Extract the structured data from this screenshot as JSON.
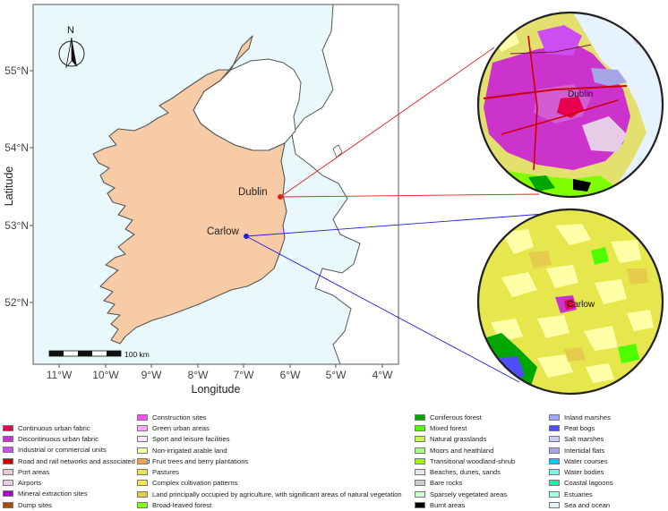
{
  "map": {
    "lat_ticks": [
      "55°N",
      "54°N",
      "53°N",
      "52°N"
    ],
    "lon_ticks": [
      "11°W",
      "10°W",
      "9°W",
      "8°W",
      "7°W",
      "6°W",
      "5°W",
      "4°W"
    ],
    "xlabel": "Longitude",
    "ylabel": "Latitude",
    "north_label": "N",
    "scalebar_label": "100 km",
    "land_color": "#f7cba6",
    "uk_land_color": "#ffffff",
    "sea_color": "#e9f9fb",
    "locations": [
      {
        "name": "Dublin",
        "lat": 53.35,
        "lon": -6.26,
        "line_color": "#e02020"
      },
      {
        "name": "Carlow",
        "lat": 52.84,
        "lon": -6.93,
        "line_color": "#2020e0"
      }
    ],
    "insets": [
      {
        "label": "Dublin",
        "dominant_class": "Discontinuous urban fabric"
      },
      {
        "label": "Carlow",
        "dominant_class": "Pastures"
      }
    ]
  },
  "legend": {
    "columns": [
      [
        {
          "label": "Continuous urban fabric",
          "color": "#e6004d"
        },
        {
          "label": "Discontinuous urban fabric",
          "color": "#cc33cc"
        },
        {
          "label": "Industrial or commercial units",
          "color": "#cc4df2"
        },
        {
          "label": "Road and rail networks and associated land",
          "color": "#cc0000"
        },
        {
          "label": "Port areas",
          "color": "#e6cccc"
        },
        {
          "label": "Airports",
          "color": "#e6cce6"
        },
        {
          "label": "Mineral extraction sites",
          "color": "#a600cc"
        },
        {
          "label": "Dump sites",
          "color": "#a64d00"
        }
      ],
      [
        {
          "label": "Construction sites",
          "color": "#ff4dff"
        },
        {
          "label": "Green urban areas",
          "color": "#ffa6ff"
        },
        {
          "label": "Sport and leisure facilities",
          "color": "#ffe6ff"
        },
        {
          "label": "Non-irrigated arable land",
          "color": "#ffffa8"
        },
        {
          "label": "Fruit trees and berry plantations",
          "color": "#f2a64d"
        },
        {
          "label": "Pastures",
          "color": "#e6e64d"
        },
        {
          "label": "Complex cultivation patterns",
          "color": "#ffe64d"
        },
        {
          "label": "Land principally occupied by agriculture, with significant areas of natural vegetation",
          "color": "#e6cc4d"
        },
        {
          "label": "Broad-leaved forest",
          "color": "#80ff00"
        }
      ],
      [
        {
          "label": "Coniferous forest",
          "color": "#00a600"
        },
        {
          "label": "Mixed forest",
          "color": "#4dff00"
        },
        {
          "label": "Natural grasslands",
          "color": "#ccf24d"
        },
        {
          "label": "Moors and heathland",
          "color": "#a6ff80"
        },
        {
          "label": "Transitional woodland-shrub",
          "color": "#a6f200"
        },
        {
          "label": "Beaches, dunes, sands",
          "color": "#e6e6e6"
        },
        {
          "label": "Bare rocks",
          "color": "#cccccc"
        },
        {
          "label": "Sparsely vegetated areas",
          "color": "#ccffcc"
        },
        {
          "label": "Burnt areas",
          "color": "#000000"
        }
      ],
      [
        {
          "label": "Inland marshes",
          "color": "#a6a6ff"
        },
        {
          "label": "Peat bogs",
          "color": "#4d4dff"
        },
        {
          "label": "Salt marshes",
          "color": "#ccccff"
        },
        {
          "label": "Intertidal flats",
          "color": "#a6a6e6"
        },
        {
          "label": "Water courses",
          "color": "#00ccf2"
        },
        {
          "label": "Water bodies",
          "color": "#80f2e6"
        },
        {
          "label": "Coastal lagoons",
          "color": "#00ffa6"
        },
        {
          "label": "Estuaries",
          "color": "#a6ffe6"
        },
        {
          "label": "Sea and ocean",
          "color": "#e6f2ff"
        }
      ]
    ]
  }
}
